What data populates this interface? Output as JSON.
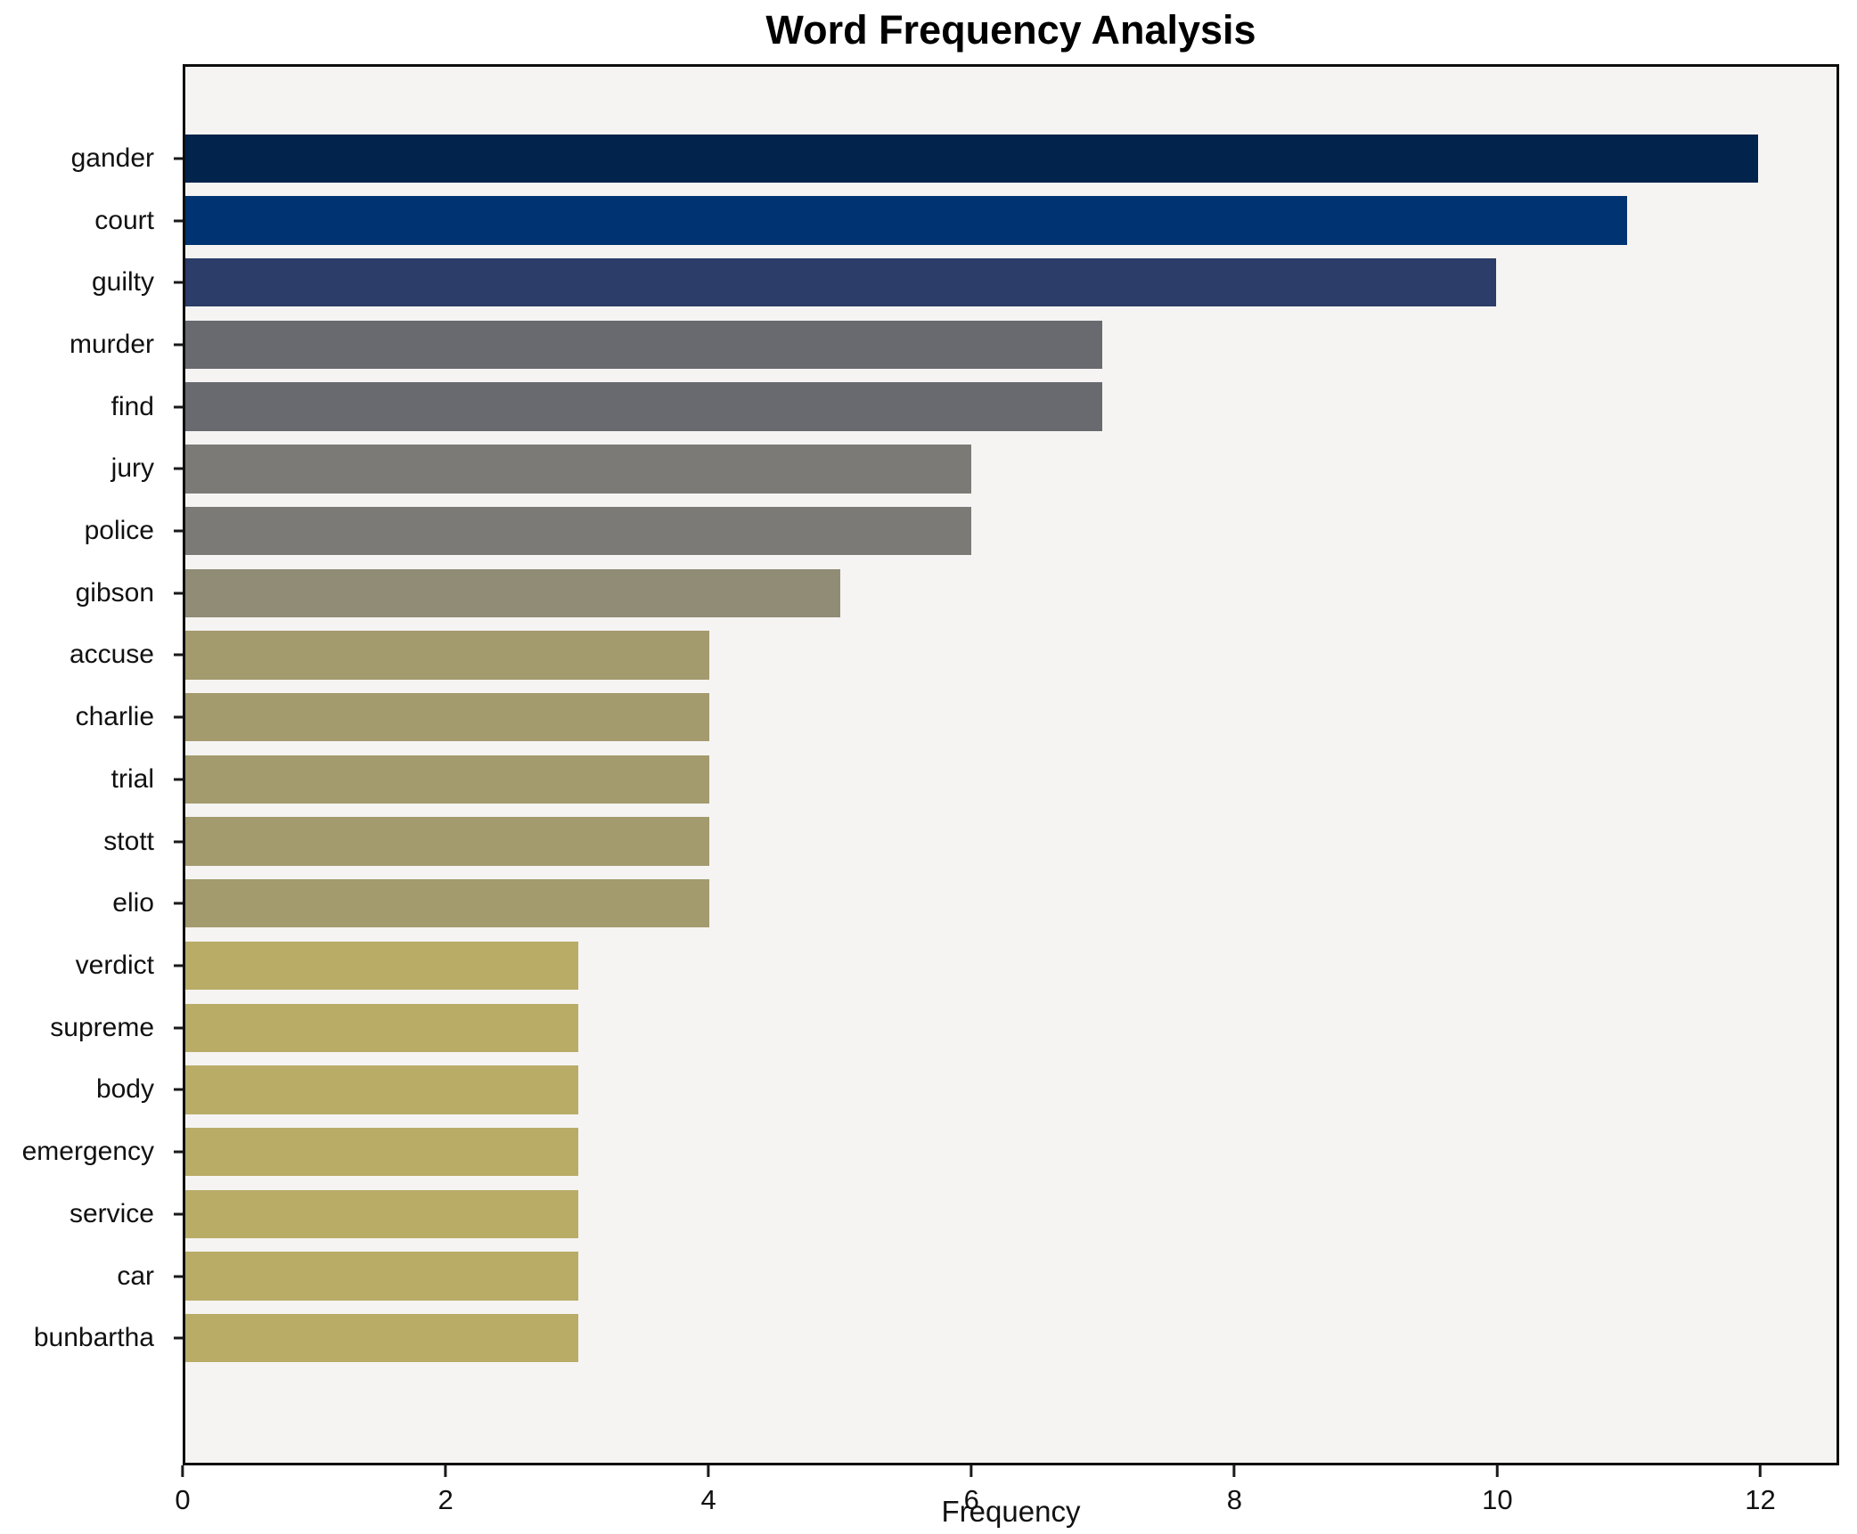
{
  "title": "Word Frequency Analysis",
  "chart_data": {
    "type": "bar",
    "orientation": "horizontal",
    "title": "Word Frequency Analysis",
    "xlabel": "Frequency",
    "ylabel": "",
    "categories": [
      "gander",
      "court",
      "guilty",
      "murder",
      "find",
      "jury",
      "police",
      "gibson",
      "accuse",
      "charlie",
      "trial",
      "stott",
      "elio",
      "verdict",
      "supreme",
      "body",
      "emergency",
      "service",
      "car",
      "bunbartha"
    ],
    "values": [
      12,
      11,
      10,
      7,
      7,
      6,
      6,
      5,
      4,
      4,
      4,
      4,
      4,
      3,
      3,
      3,
      3,
      3,
      3,
      3
    ],
    "bar_colors": [
      "#02234c",
      "#003371",
      "#2b3d68",
      "#696a70",
      "#696a70",
      "#7b7a76",
      "#7b7a76",
      "#918c76",
      "#a39a6e",
      "#a39a6e",
      "#a39a6e",
      "#a39a6e",
      "#a39a6e",
      "#b9ac67",
      "#b9ac67",
      "#b9ac67",
      "#b9ac67",
      "#b9ac67",
      "#b9ac67",
      "#b9ac67"
    ],
    "xlim": [
      0,
      12.6
    ],
    "xticks": [
      0,
      2,
      4,
      6,
      8,
      10,
      12
    ],
    "grid": false,
    "legend": null,
    "plot_background": "#f5f4f2",
    "figure_background": "#ffffff",
    "spine_color": "#0d0d0d"
  }
}
